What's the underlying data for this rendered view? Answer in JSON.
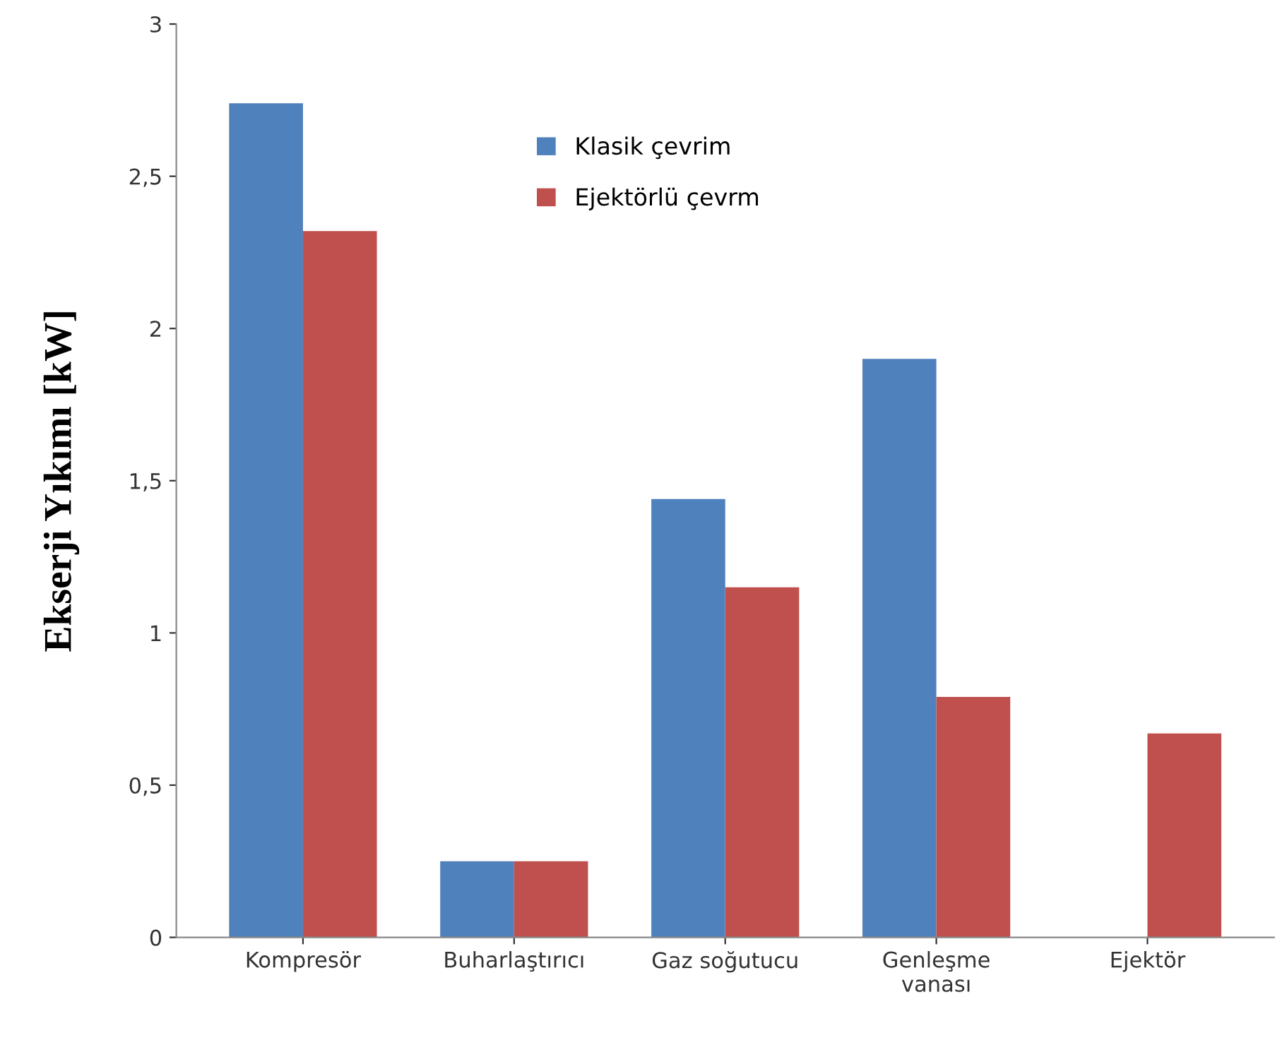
{
  "chart_data": {
    "type": "bar",
    "ylabel": "Ekserji Yıkımı [kW]",
    "categories": [
      "Kompresör",
      "Buharlaştırıcı",
      "Gaz soğutucu",
      "Genleşme\nvanası",
      "Ejektör"
    ],
    "series": [
      {
        "name": "Klasik çevrim",
        "color": "#4f81bd",
        "values": [
          2.74,
          0.25,
          1.44,
          1.9,
          0
        ]
      },
      {
        "name": "Ejektörlü çevrm",
        "color": "#c0504d",
        "values": [
          2.32,
          0.25,
          1.15,
          0.79,
          0.67
        ]
      }
    ],
    "ylim": [
      0,
      3
    ],
    "yticks": [
      0,
      {
        "value": 0.5,
        "label": "0,5"
      },
      1,
      {
        "value": 1.5,
        "label": "1,5"
      },
      2,
      {
        "value": 2.5,
        "label": "2,5"
      },
      3
    ],
    "grid": false,
    "legend": "top"
  }
}
